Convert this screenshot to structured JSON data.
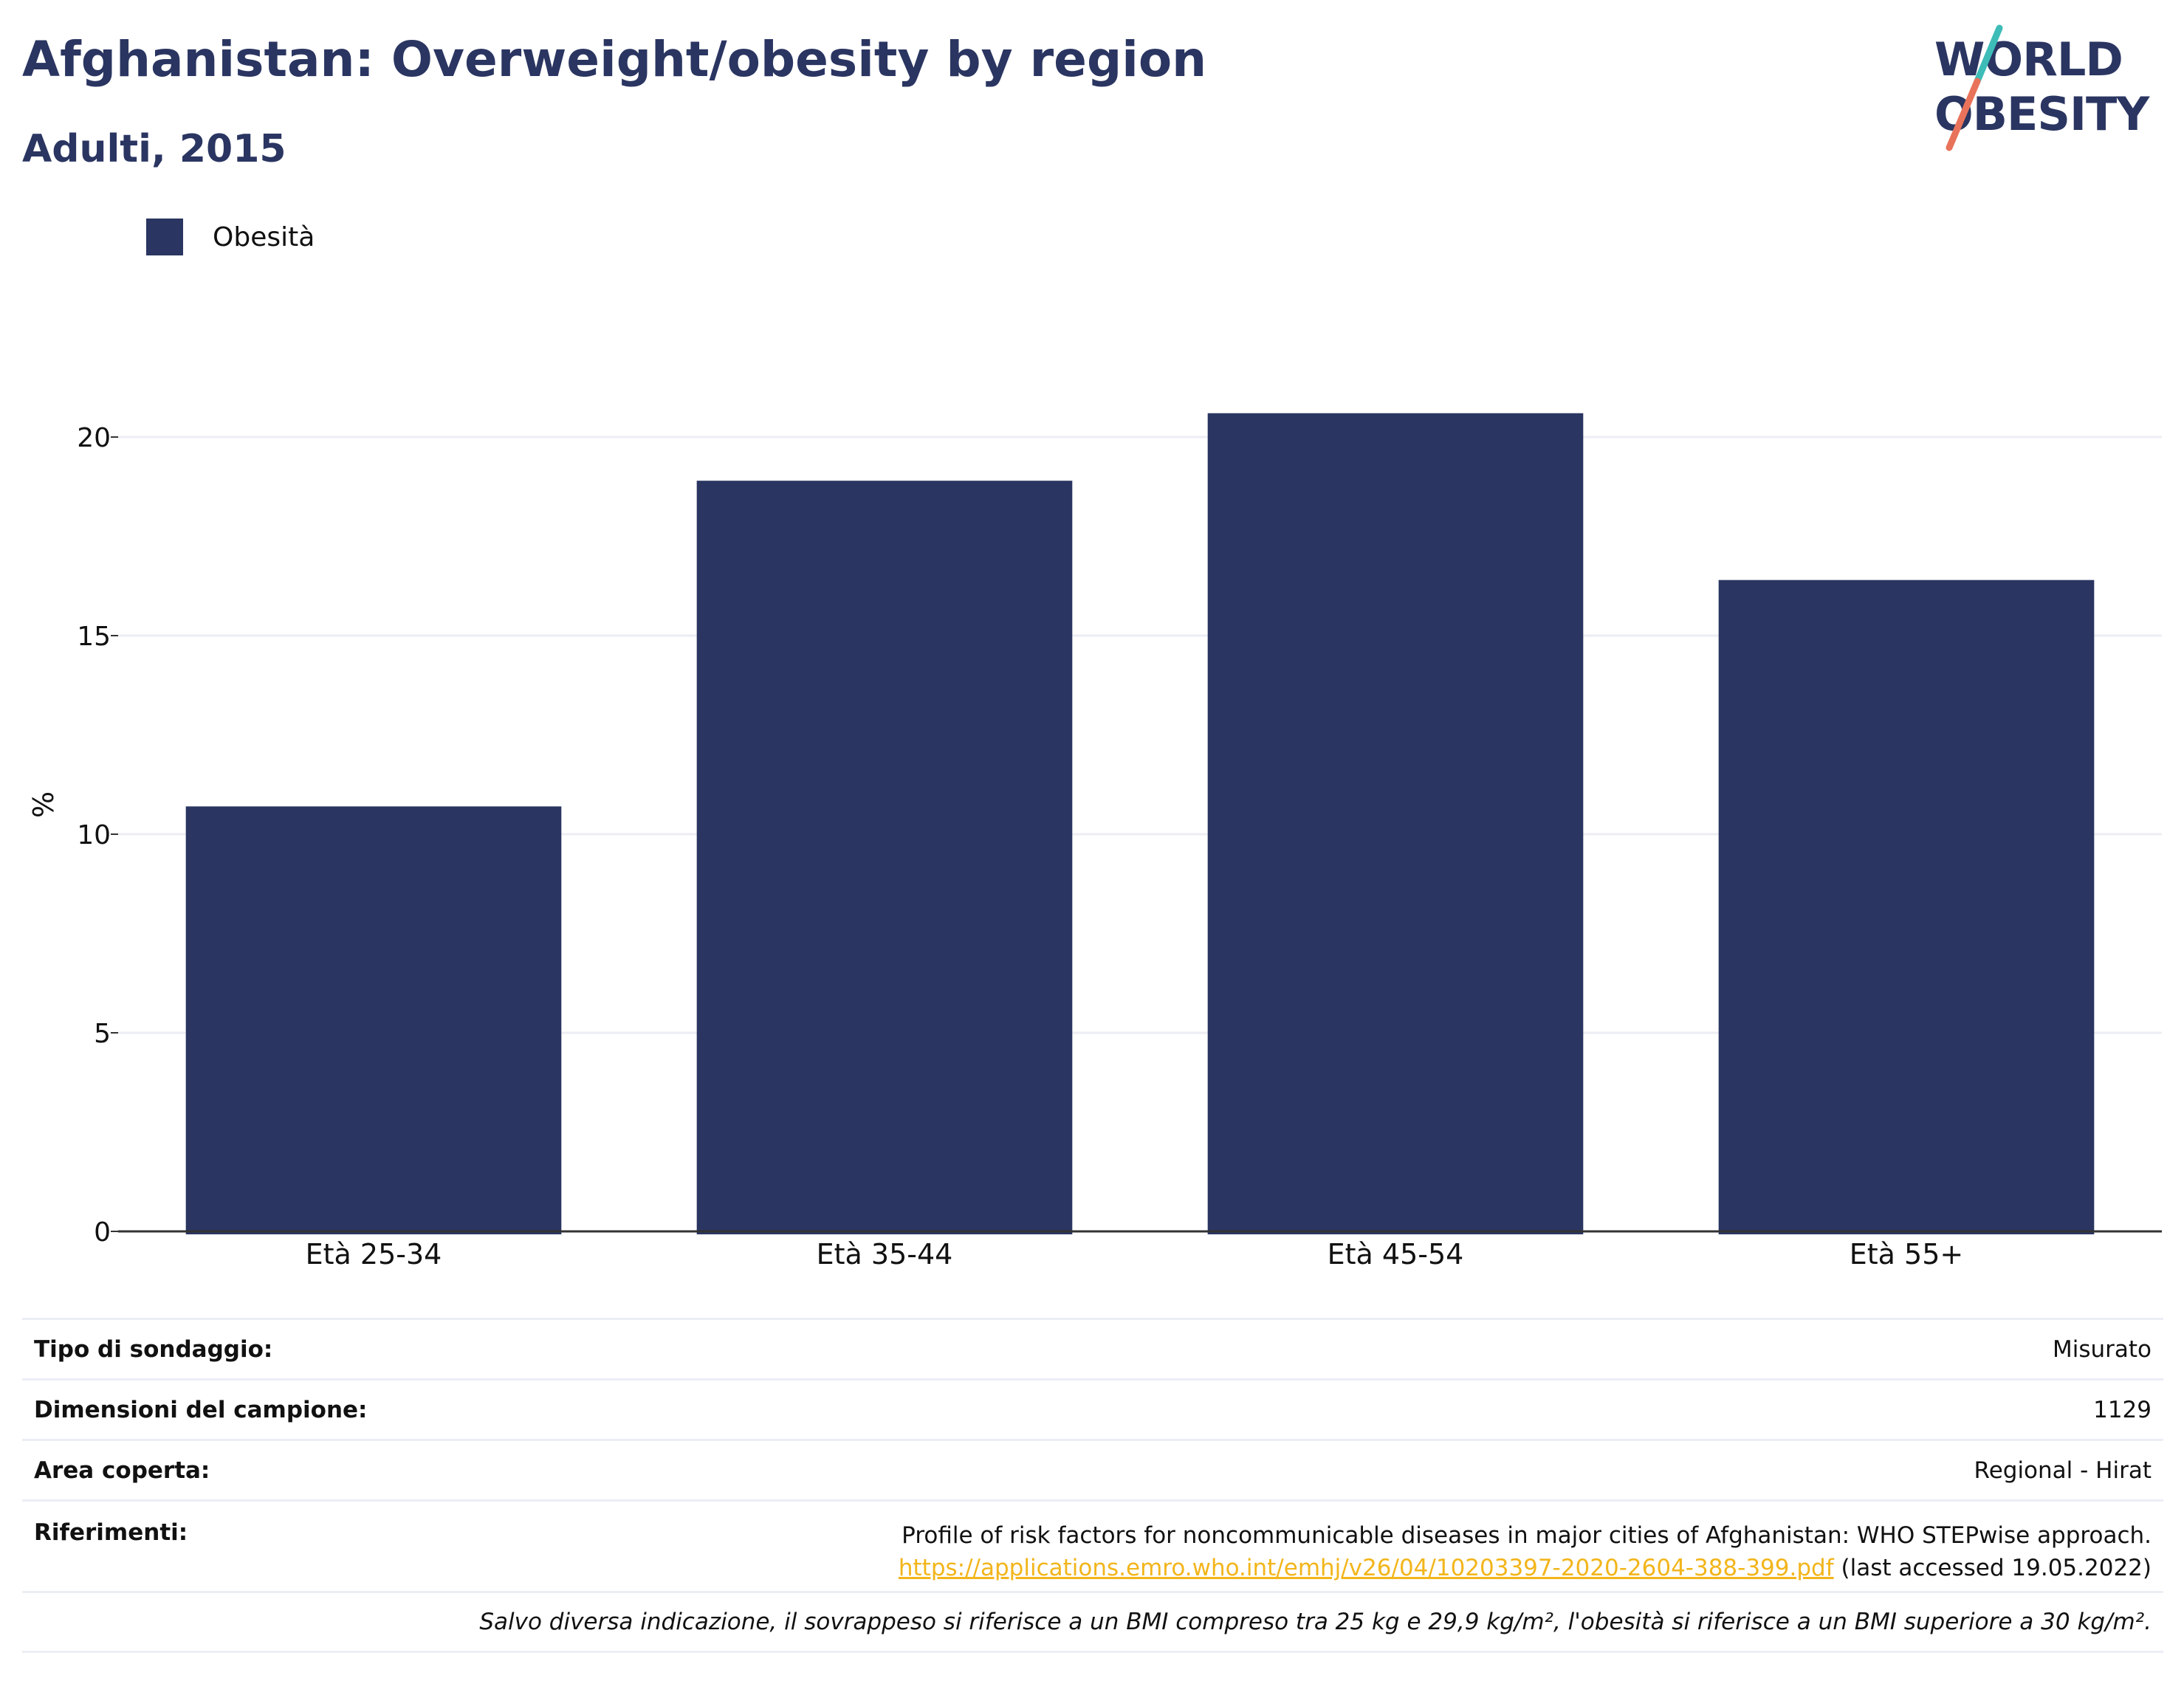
{
  "header": {
    "title": "Afghanistan: Overweight/obesity by region",
    "subtitle": "Adulti, 2015"
  },
  "logo": {
    "line1": "WORLD",
    "line2": "OBESITY",
    "colors": {
      "text": "#2a3561",
      "slash_top": "#3dbcb8",
      "slash_bottom": "#e8735a"
    }
  },
  "colors": {
    "bar": "#2a3561",
    "grid": "#eceef4",
    "axis": "#333333",
    "link": "#f2b51b"
  },
  "chart_data": {
    "type": "bar",
    "title": "Afghanistan: Overweight/obesity by region",
    "subtitle": "Adulti, 2015",
    "categories": [
      "Età 25-34",
      "Età 35-44",
      "Età 45-54",
      "Età 55+"
    ],
    "series": [
      {
        "name": "Obesità",
        "values": [
          10.7,
          18.9,
          20.6,
          16.4
        ]
      }
    ],
    "xlabel": "",
    "ylabel": "%",
    "ylim": [
      0,
      22
    ],
    "yticks": [
      0,
      5,
      10,
      15,
      20
    ],
    "grid": true,
    "legend_position": "top-left"
  },
  "info": {
    "survey_type": {
      "label": "Tipo di sondaggio:",
      "value": "Misurato"
    },
    "sample_size": {
      "label": "Dimensioni del campione:",
      "value": "1129"
    },
    "area": {
      "label": "Area coperta:",
      "value": "Regional - Hirat"
    },
    "references": {
      "label": "Riferimenti:",
      "text": "Profile of risk factors for noncommunicable diseases in major cities of Afghanistan: WHO STEPwise approach.",
      "link": "https://applications.emro.who.int/emhj/v26/04/10203397-2020-2604-388-399.pdf",
      "accessed": "(last accessed 19.05.2022)"
    },
    "note": "Salvo diversa indicazione, il sovrappeso si riferisce a un BMI compreso tra 25 kg e 29,9 kg/m², l'obesità si riferisce a un BMI superiore a 30 kg/m²."
  }
}
